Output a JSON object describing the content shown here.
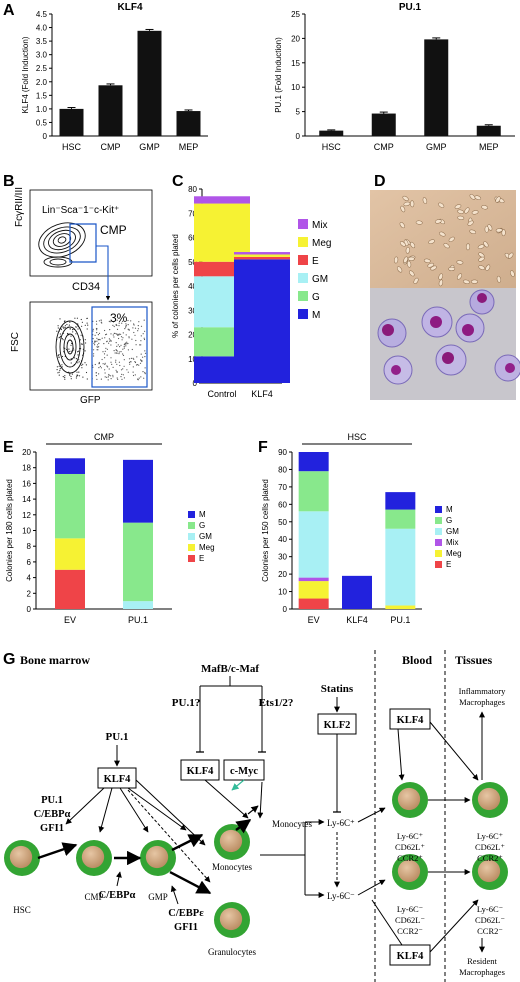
{
  "colors": {
    "M": "#2222dd",
    "G": "#88e88c",
    "GM": "#a8f0f4",
    "Mix": "#b055e8",
    "Meg": "#f6f233",
    "E": "#ef4448",
    "cell_outer": "#33a433",
    "cell_inner": "#caa27c",
    "bar": "#111111"
  },
  "panel_letters": {
    "A": "A",
    "B": "B",
    "C": "C",
    "D": "D",
    "E": "E",
    "F": "F",
    "G": "G"
  },
  "chart_data": [
    {
      "id": "A1",
      "type": "bar",
      "title": "KLF4",
      "ylabel": "KLF4 (Fold Induction)",
      "categories": [
        "HSC",
        "CMP",
        "GMP",
        "MEP"
      ],
      "values": [
        1.0,
        1.87,
        3.88,
        0.92
      ],
      "errors": [
        0.05,
        0.05,
        0.05,
        0.04
      ],
      "ylim": [
        0,
        4.5
      ],
      "yticks": [
        "0",
        "0.5",
        "1.0",
        "1.5",
        "2.0",
        "2.5",
        "3.0",
        "3.5",
        "4.0",
        "4.5"
      ],
      "ytick_values": [
        0,
        0.5,
        1,
        1.5,
        2,
        2.5,
        3,
        3.5,
        4,
        4.5
      ]
    },
    {
      "id": "A2",
      "type": "bar",
      "title": "PU.1",
      "ylabel": "PU.1 (Fold Induction)",
      "categories": [
        "HSC",
        "CMP",
        "GMP",
        "MEP"
      ],
      "values": [
        1.1,
        4.6,
        19.8,
        2.1
      ],
      "errors": [
        0.15,
        0.3,
        0.3,
        0.2
      ],
      "ylim": [
        0,
        25
      ],
      "yticks": [
        "0",
        "5",
        "10",
        "15",
        "20",
        "25"
      ],
      "ytick_values": [
        0,
        5,
        10,
        15,
        20,
        25
      ]
    },
    {
      "id": "C",
      "type": "bar",
      "stacked": true,
      "ylabel": "% of colonies per cells plated",
      "categories": [
        "Control",
        "KLF4"
      ],
      "ylim": [
        0,
        80
      ],
      "yticks": [
        "0",
        "10",
        "20",
        "30",
        "40",
        "50",
        "60",
        "70",
        "80"
      ],
      "ytick_values": [
        0,
        10,
        20,
        30,
        40,
        50,
        60,
        70,
        80
      ],
      "series": [
        {
          "name": "M",
          "values": [
            11,
            51
          ]
        },
        {
          "name": "G",
          "values": [
            12,
            0
          ]
        },
        {
          "name": "GM",
          "values": [
            21,
            0
          ]
        },
        {
          "name": "E",
          "values": [
            6,
            1
          ]
        },
        {
          "name": "Meg",
          "values": [
            24,
            1
          ]
        },
        {
          "name": "Mix",
          "values": [
            3,
            1
          ]
        }
      ],
      "legend": [
        "Mix",
        "Meg",
        "E",
        "GM",
        "G",
        "M"
      ]
    },
    {
      "id": "E",
      "type": "bar",
      "stacked": true,
      "header": "CMP",
      "ylabel": "Colonies per 180 cells plated",
      "categories": [
        "EV",
        "PU.1"
      ],
      "ylim": [
        0,
        20
      ],
      "yticks": [
        "0",
        "2",
        "4",
        "6",
        "8",
        "10",
        "12",
        "14",
        "16",
        "18",
        "20"
      ],
      "ytick_values": [
        0,
        2,
        4,
        6,
        8,
        10,
        12,
        14,
        16,
        18,
        20
      ],
      "series": [
        {
          "name": "E",
          "values": [
            5,
            0
          ]
        },
        {
          "name": "Meg",
          "values": [
            4,
            0
          ]
        },
        {
          "name": "GM",
          "values": [
            0,
            1
          ]
        },
        {
          "name": "G",
          "values": [
            8.2,
            10
          ]
        },
        {
          "name": "M",
          "values": [
            2,
            8
          ]
        }
      ],
      "legend": [
        "M",
        "G",
        "GM",
        "Meg",
        "E"
      ]
    },
    {
      "id": "F",
      "type": "bar",
      "stacked": true,
      "header": "HSC",
      "ylabel": "Colonies per 150 cells plated",
      "categories": [
        "EV",
        "KLF4",
        "PU.1"
      ],
      "ylim": [
        0,
        90
      ],
      "yticks": [
        "0",
        "10",
        "20",
        "30",
        "40",
        "50",
        "60",
        "70",
        "80",
        "90"
      ],
      "ytick_values": [
        0,
        10,
        20,
        30,
        40,
        50,
        60,
        70,
        80,
        90
      ],
      "series": [
        {
          "name": "E",
          "values": [
            6,
            0,
            0
          ]
        },
        {
          "name": "Meg",
          "values": [
            10,
            0,
            2
          ]
        },
        {
          "name": "Mix",
          "values": [
            2,
            0,
            0
          ]
        },
        {
          "name": "GM",
          "values": [
            38,
            0,
            44
          ]
        },
        {
          "name": "G",
          "values": [
            23,
            0,
            11
          ]
        },
        {
          "name": "M",
          "values": [
            11,
            19,
            10
          ]
        }
      ],
      "legend": [
        "M",
        "G",
        "GM",
        "Mix",
        "Meg",
        "E"
      ]
    }
  ],
  "panel_b": {
    "gate_top": "Lin⁻Sca⁻1⁻c-Kit⁺",
    "ylabel_top": "FᴄγRII/III",
    "xlabel_top": "CD34",
    "gate": "CMP",
    "ylabel_bottom": "FSC",
    "xlabel_bottom": "GFP",
    "percent": "3%"
  },
  "panel_g": {
    "bone_marrow": "Bone marrow",
    "blood": "Blood",
    "tissues": "Tissues",
    "mafb": "MafB/c-Maf",
    "pu1q": "PU.1?",
    "ets": "Ets1/2?",
    "klf4": "KLF4",
    "cmyc": "c-Myc",
    "pu1": "PU.1",
    "factors_left": [
      "PU.1",
      "C/EBPα",
      "GFI1"
    ],
    "cebpa": "C/EBPα",
    "cebpe": [
      "C/EBPε",
      "GFI1"
    ],
    "hsc": "HSC",
    "cmp": "CMP",
    "gmp": "GMP",
    "monocytes": "Monocytes",
    "monocytes_upper": "Monocytes",
    "granulocytes": "Granulocytes",
    "statins": "Statins",
    "klf2": "KLF2",
    "ly6c_pos": "Ly-6C⁺",
    "ly6c_neg": "Ly-6C⁻",
    "blood_pos": [
      "Ly-6C⁺",
      "CD62L⁺",
      "CCR2⁺"
    ],
    "blood_neg": [
      "Ly-6C⁻",
      "CD62L⁻",
      "CCR2⁻"
    ],
    "tissue_pos": [
      "Ly-6C⁺",
      "CD62L⁺",
      "CCR2⁺"
    ],
    "tissue_neg": [
      "Ly-6C⁻",
      "CD62L⁻",
      "CCR2⁻"
    ],
    "inflammatory": [
      "Inflammatory",
      "Macrophages"
    ],
    "resident": [
      "Resident",
      "Macrophages"
    ]
  }
}
